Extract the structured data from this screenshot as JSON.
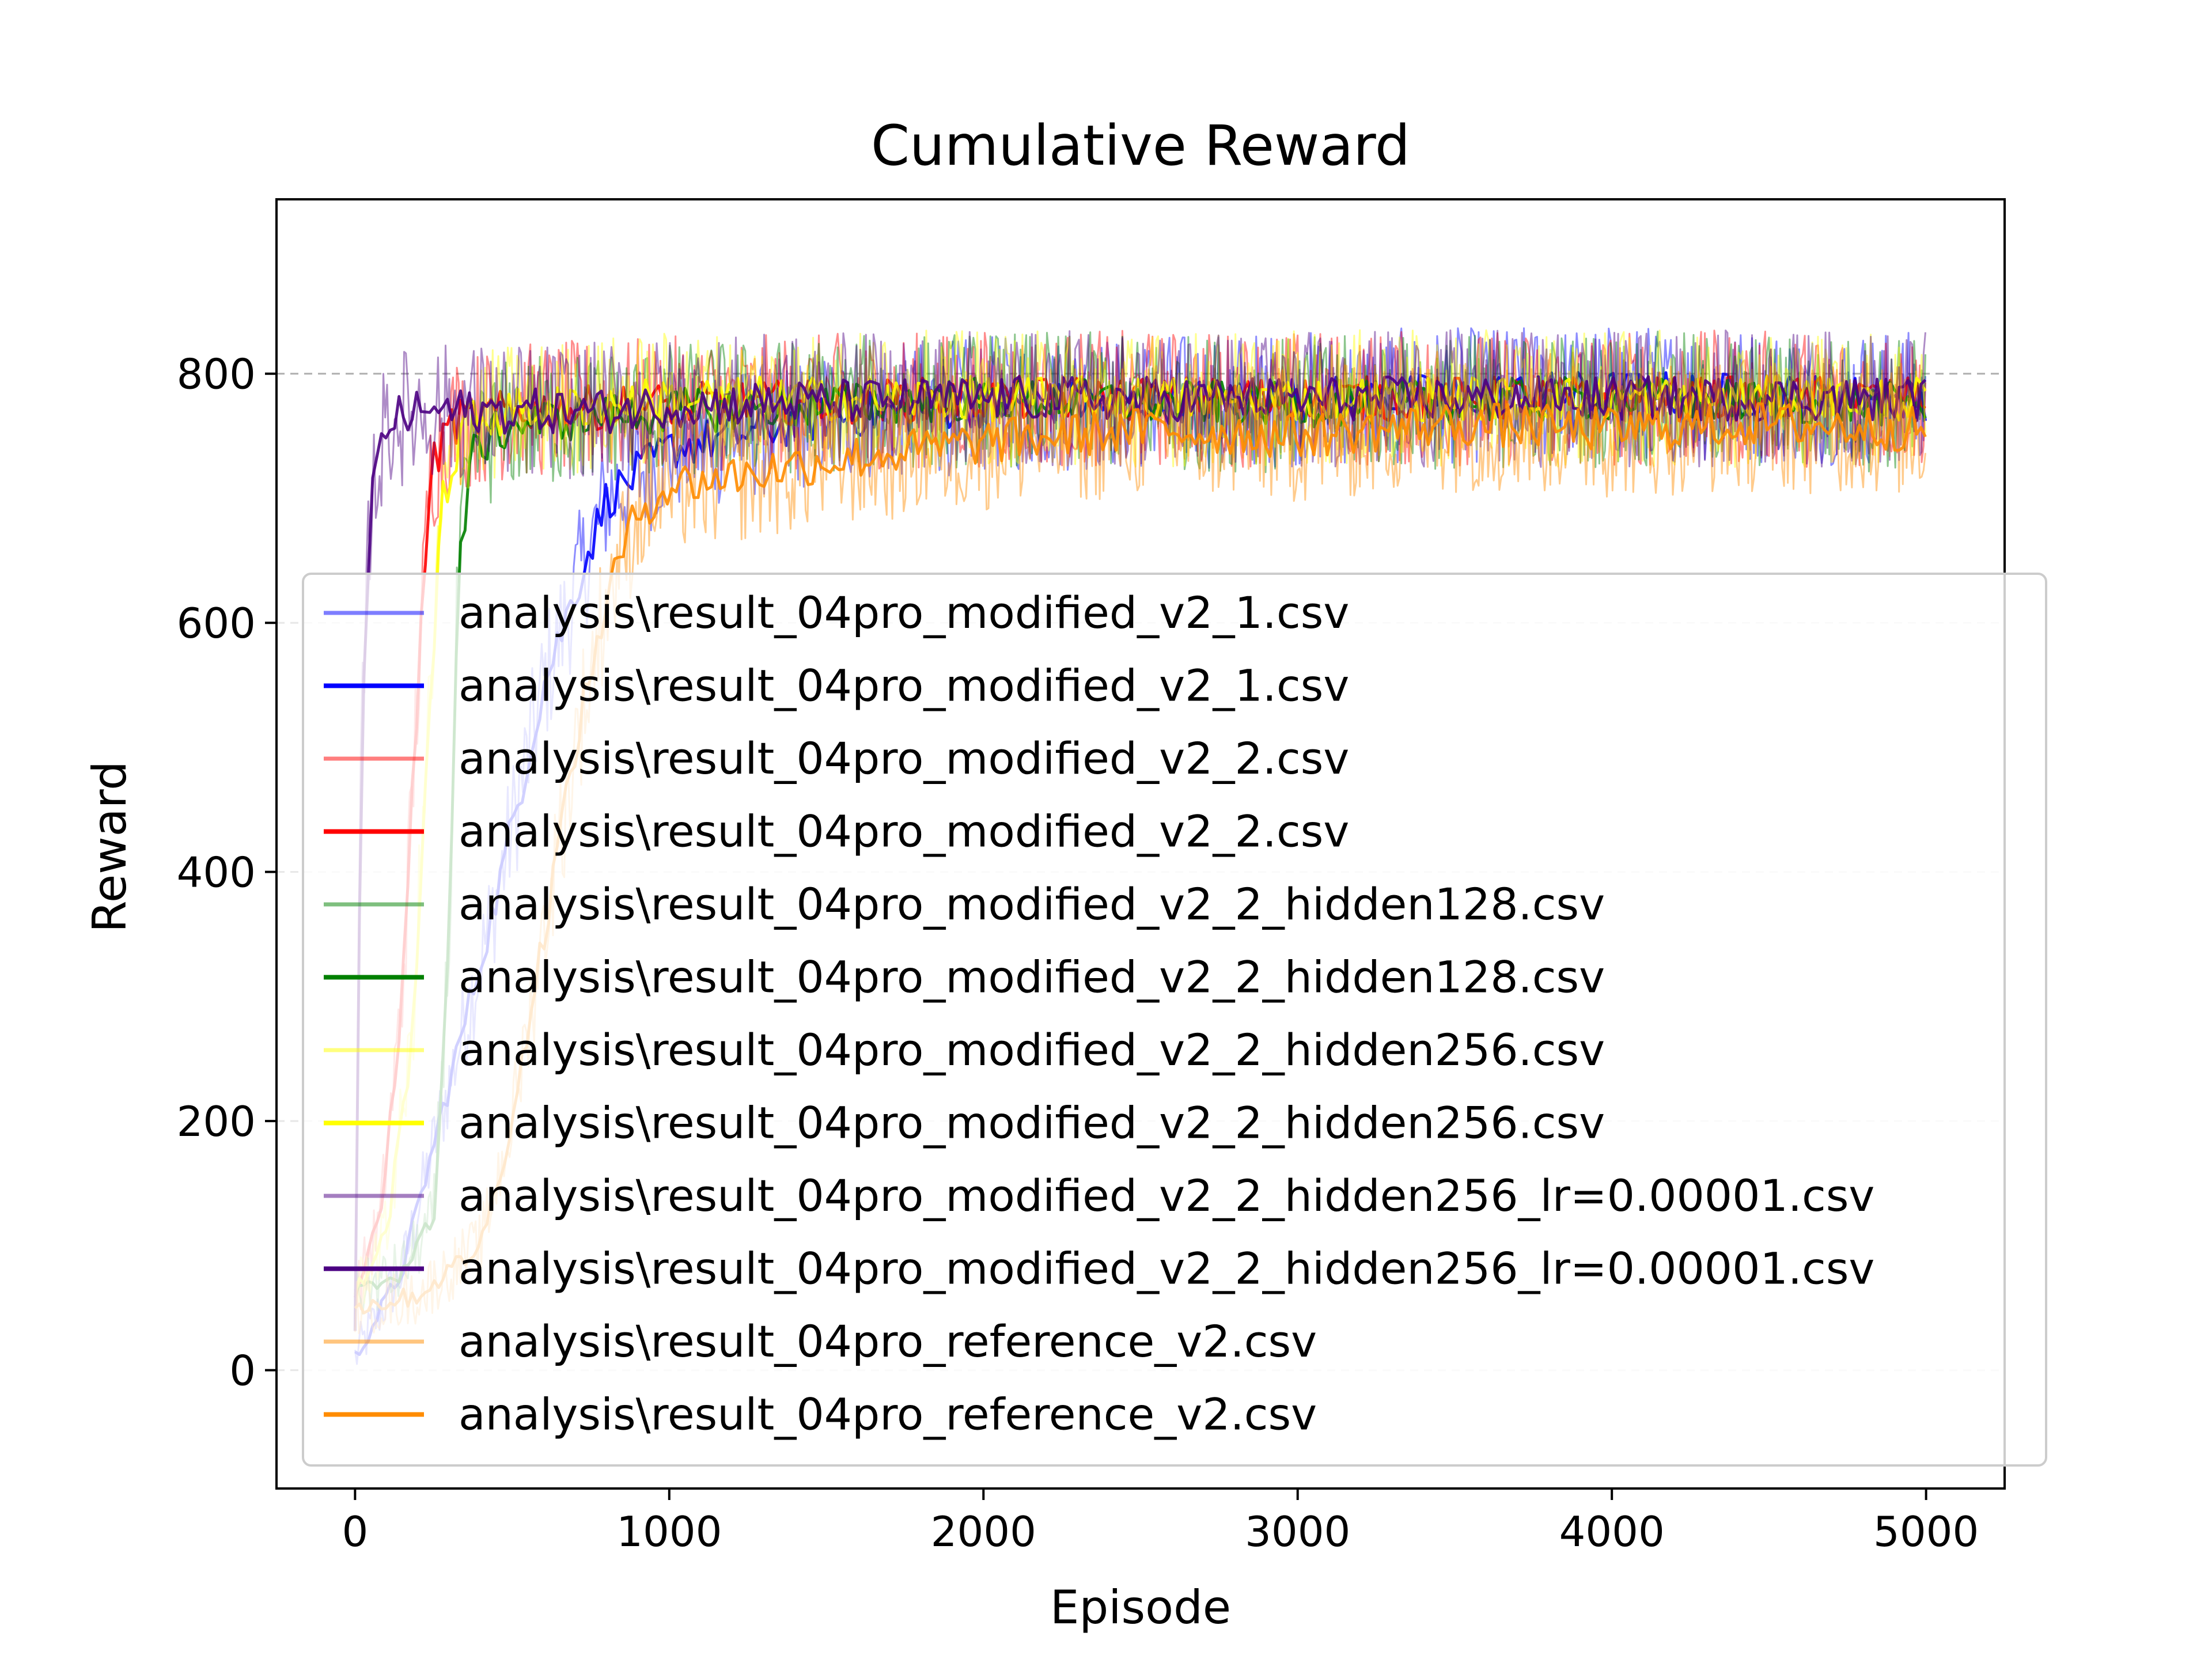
{
  "chart_data": {
    "type": "line",
    "title": "Cumulative Reward",
    "xlabel": "Episode",
    "ylabel": "Reward",
    "xlim": [
      -250,
      5250
    ],
    "ylim": [
      -95,
      940
    ],
    "x_ticks": [
      0,
      1000,
      2000,
      3000,
      4000,
      5000
    ],
    "y_ticks": [
      0,
      200,
      400,
      600,
      800
    ],
    "grid": "horizontal dashed",
    "reference_line": 800,
    "legend_position": "lower-right",
    "series": [
      {
        "name": "analysis\\result_04pro_modified_v2_1.csv",
        "color": "#0000ff",
        "kind": "raw",
        "x": [
          0,
          150,
          300,
          450,
          600,
          800,
          1000,
          1500,
          2000,
          3000,
          4000,
          5000
        ],
        "values": [
          10,
          80,
          230,
          380,
          550,
          700,
          740,
          765,
          775,
          780,
          785,
          780
        ]
      },
      {
        "name": "analysis\\result_04pro_modified_v2_1.csv",
        "color": "#0000ff",
        "kind": "smoothed",
        "x": [
          0,
          150,
          300,
          450,
          600,
          800,
          1000,
          1500,
          2000,
          3000,
          4000,
          5000
        ],
        "values": [
          10,
          80,
          230,
          380,
          550,
          700,
          740,
          765,
          775,
          780,
          785,
          780
        ]
      },
      {
        "name": "analysis\\result_04pro_modified_v2_2.csv",
        "color": "#ff0000",
        "kind": "raw",
        "x": [
          0,
          80,
          150,
          200,
          240,
          300,
          500,
          1000,
          2000,
          3000,
          4000,
          5000
        ],
        "values": [
          60,
          120,
          300,
          550,
          720,
          760,
          770,
          775,
          780,
          780,
          780,
          780
        ]
      },
      {
        "name": "analysis\\result_04pro_modified_v2_2.csv",
        "color": "#ff0000",
        "kind": "smoothed",
        "x": [
          0,
          80,
          150,
          200,
          240,
          300,
          500,
          1000,
          2000,
          3000,
          4000,
          5000
        ],
        "values": [
          60,
          120,
          300,
          550,
          720,
          760,
          770,
          775,
          780,
          780,
          780,
          780
        ]
      },
      {
        "name": "analysis\\result_04pro_modified_v2_2_hidden128.csv",
        "color": "#008000",
        "kind": "raw",
        "x": [
          0,
          150,
          250,
          300,
          330,
          380,
          500,
          1000,
          2000,
          3000,
          4000,
          5000
        ],
        "values": [
          60,
          80,
          120,
          350,
          650,
          740,
          760,
          770,
          780,
          775,
          780,
          775
        ]
      },
      {
        "name": "analysis\\result_04pro_modified_v2_2_hidden128.csv",
        "color": "#008000",
        "kind": "smoothed",
        "x": [
          0,
          150,
          250,
          300,
          330,
          380,
          500,
          1000,
          2000,
          3000,
          4000,
          5000
        ],
        "values": [
          60,
          80,
          120,
          350,
          650,
          740,
          760,
          770,
          780,
          775,
          780,
          775
        ]
      },
      {
        "name": "analysis\\result_04pro_modified_v2_2_hidden256.csv",
        "color": "#ffff00",
        "kind": "raw",
        "x": [
          0,
          100,
          180,
          230,
          280,
          350,
          500,
          1000,
          2000,
          3000,
          4000,
          5000
        ],
        "values": [
          60,
          110,
          260,
          500,
          700,
          760,
          770,
          780,
          780,
          780,
          780,
          780
        ]
      },
      {
        "name": "analysis\\result_04pro_modified_v2_2_hidden256.csv",
        "color": "#ffff00",
        "kind": "smoothed",
        "x": [
          0,
          100,
          180,
          230,
          280,
          350,
          500,
          1000,
          2000,
          3000,
          4000,
          5000
        ],
        "values": [
          60,
          110,
          260,
          500,
          700,
          760,
          770,
          780,
          780,
          780,
          780,
          780
        ]
      },
      {
        "name": "analysis\\result_04pro_modified_v2_2_hidden256_lr=0.00001.csv",
        "color": "#4b0082",
        "kind": "raw",
        "x": [
          0,
          20,
          50,
          100,
          200,
          400,
          600,
          800,
          1000,
          2000,
          3000,
          4000,
          5000
        ],
        "values": [
          30,
          500,
          700,
          760,
          770,
          770,
          770,
          770,
          775,
          780,
          780,
          780,
          780
        ]
      },
      {
        "name": "analysis\\result_04pro_modified_v2_2_hidden256_lr=0.00001.csv",
        "color": "#4b0082",
        "kind": "smoothed",
        "x": [
          0,
          20,
          50,
          100,
          200,
          400,
          600,
          800,
          1000,
          2000,
          3000,
          4000,
          5000
        ],
        "values": [
          30,
          500,
          700,
          760,
          770,
          770,
          770,
          770,
          775,
          780,
          780,
          780,
          780
        ]
      },
      {
        "name": "analysis\\result_04pro_reference_v2.csv",
        "color": "#ff8c00",
        "kind": "raw",
        "x": [
          0,
          200,
          400,
          500,
          600,
          700,
          800,
          900,
          1000,
          1500,
          2000,
          2500,
          3000,
          3500,
          4000,
          4500,
          5000
        ],
        "values": [
          50,
          60,
          100,
          200,
          350,
          500,
          620,
          690,
          710,
          730,
          745,
          755,
          750,
          760,
          755,
          760,
          755
        ]
      },
      {
        "name": "analysis\\result_04pro_reference_v2.csv",
        "color": "#ff8c00",
        "kind": "smoothed",
        "x": [
          0,
          200,
          400,
          500,
          600,
          700,
          800,
          900,
          1000,
          1500,
          2000,
          2500,
          3000,
          3500,
          4000,
          4500,
          5000
        ],
        "values": [
          50,
          60,
          100,
          200,
          350,
          500,
          620,
          690,
          710,
          730,
          745,
          755,
          750,
          760,
          755,
          760,
          755
        ]
      }
    ]
  }
}
